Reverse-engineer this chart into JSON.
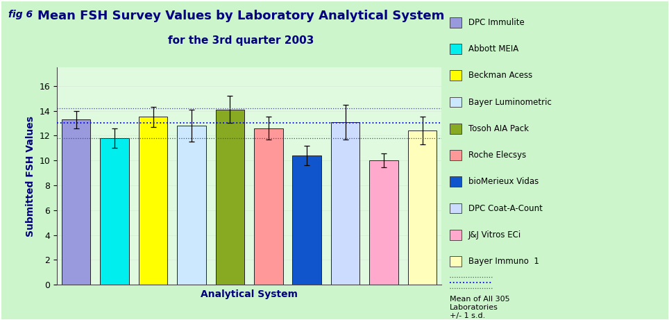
{
  "title_line1": "Mean FSH Survey Values by Laboratory Analytical System",
  "title_line2": "for the 3rd quarter 2003",
  "fig_label": "fig 6",
  "xlabel": "Analytical System",
  "ylabel": "Submitted FSH Values",
  "background_color": "#ccf5cc",
  "plot_bg_color": "#e0fae0",
  "categories": [
    "DPC Immulite",
    "Abbott MEIA",
    "Beckman Acess",
    "Bayer Luminometric",
    "Tosoh AIA Pack",
    "Roche Elecsys",
    "bioMerieux Vidas",
    "DPC Coat-A-Count",
    "J&J Vitros ECi",
    "Bayer Immuno  1"
  ],
  "values": [
    13.3,
    11.8,
    13.5,
    12.8,
    14.1,
    12.6,
    10.4,
    13.1,
    10.0,
    12.4
  ],
  "errors": [
    0.7,
    0.8,
    0.8,
    1.3,
    1.1,
    0.9,
    0.8,
    1.4,
    0.55,
    1.1
  ],
  "bar_colors": [
    "#9999dd",
    "#00eeee",
    "#ffff00",
    "#cce8ff",
    "#88aa22",
    "#ff9999",
    "#1155cc",
    "#ccdcff",
    "#ffaacc",
    "#ffffbb"
  ],
  "bar_edge_color": "#222222",
  "mean_line": 13.0,
  "mean_upper": 14.2,
  "mean_lower": 11.8,
  "ylim": [
    0,
    17.5
  ],
  "yticks": [
    0,
    2,
    4,
    6,
    8,
    10,
    12,
    14,
    16
  ],
  "title_fontsize": 13,
  "subtitle_fontsize": 11,
  "axis_label_fontsize": 10,
  "tick_fontsize": 9,
  "legend_fontsize": 8.5
}
